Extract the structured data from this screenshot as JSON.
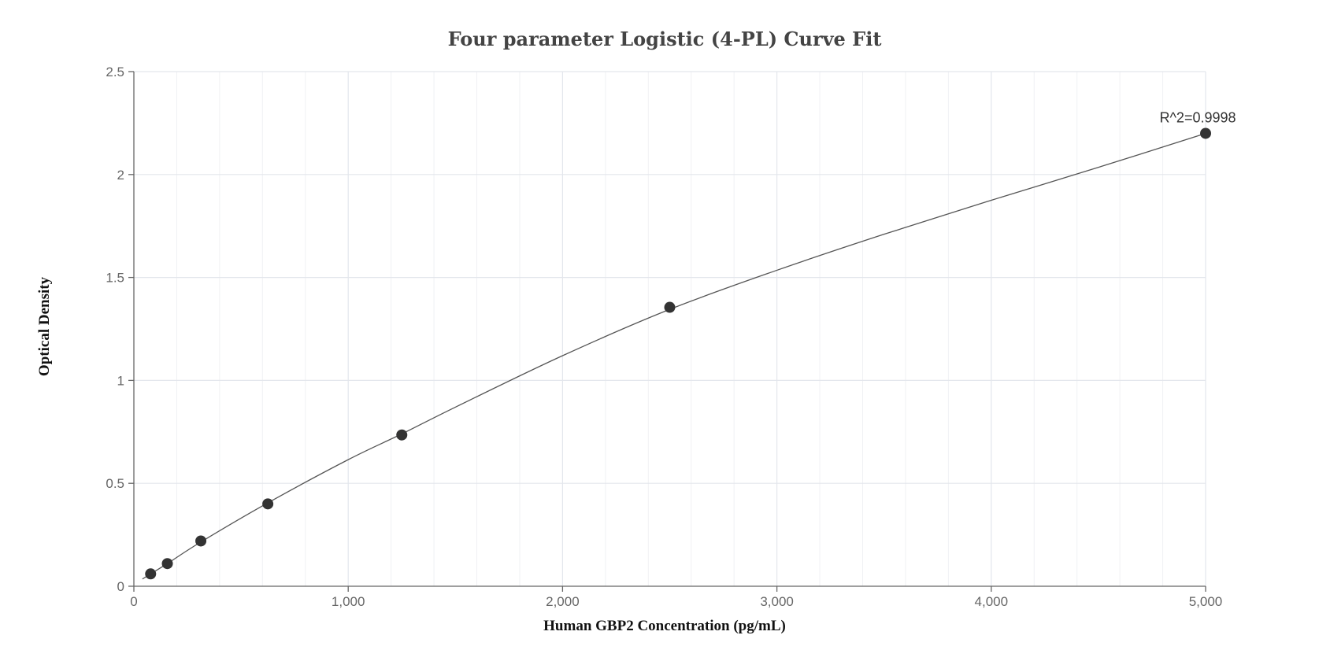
{
  "chart_data": {
    "type": "scatter",
    "title": "Four parameter Logistic (4-PL) Curve Fit",
    "xlabel": "Human GBP2 Concentration (pg/mL)",
    "ylabel": "Optical Density",
    "xlim": [
      0,
      5000
    ],
    "ylim": [
      0,
      2.5
    ],
    "x_ticks": [
      0,
      1000,
      2000,
      3000,
      4000,
      5000
    ],
    "x_tick_labels": [
      "0",
      "1,000",
      "2,000",
      "3,000",
      "4,000",
      "5,000"
    ],
    "y_ticks": [
      0,
      0.5,
      1,
      1.5,
      2,
      2.5
    ],
    "y_tick_labels": [
      "0",
      "0.5",
      "1",
      "1.5",
      "2",
      "2.5"
    ],
    "grid": true,
    "series": [
      {
        "points": [
          {
            "x": 78.125,
            "y": 0.06
          },
          {
            "x": 156.25,
            "y": 0.11
          },
          {
            "x": 312.5,
            "y": 0.22
          },
          {
            "x": 625,
            "y": 0.4
          },
          {
            "x": 1250,
            "y": 0.735
          },
          {
            "x": 2500,
            "y": 1.355
          },
          {
            "x": 5000,
            "y": 2.2
          }
        ]
      }
    ],
    "fit_curve": {
      "x": [
        40,
        78.125,
        156.25,
        312.5,
        625,
        1000,
        1250,
        1500,
        2000,
        2500,
        3000,
        3500,
        4000,
        4500,
        5000
      ],
      "y": [
        0.035,
        0.06,
        0.11,
        0.215,
        0.405,
        0.615,
        0.74,
        0.87,
        1.12,
        1.345,
        1.535,
        1.71,
        1.875,
        2.035,
        2.2
      ]
    },
    "annotation": {
      "text": "R^2=0.9998",
      "x": 5000,
      "y": 2.2
    }
  },
  "colors": {
    "point": "#333333",
    "curve": "#555555",
    "grid": "#e3e6ec",
    "axis": "#666666",
    "title": "#444444"
  }
}
